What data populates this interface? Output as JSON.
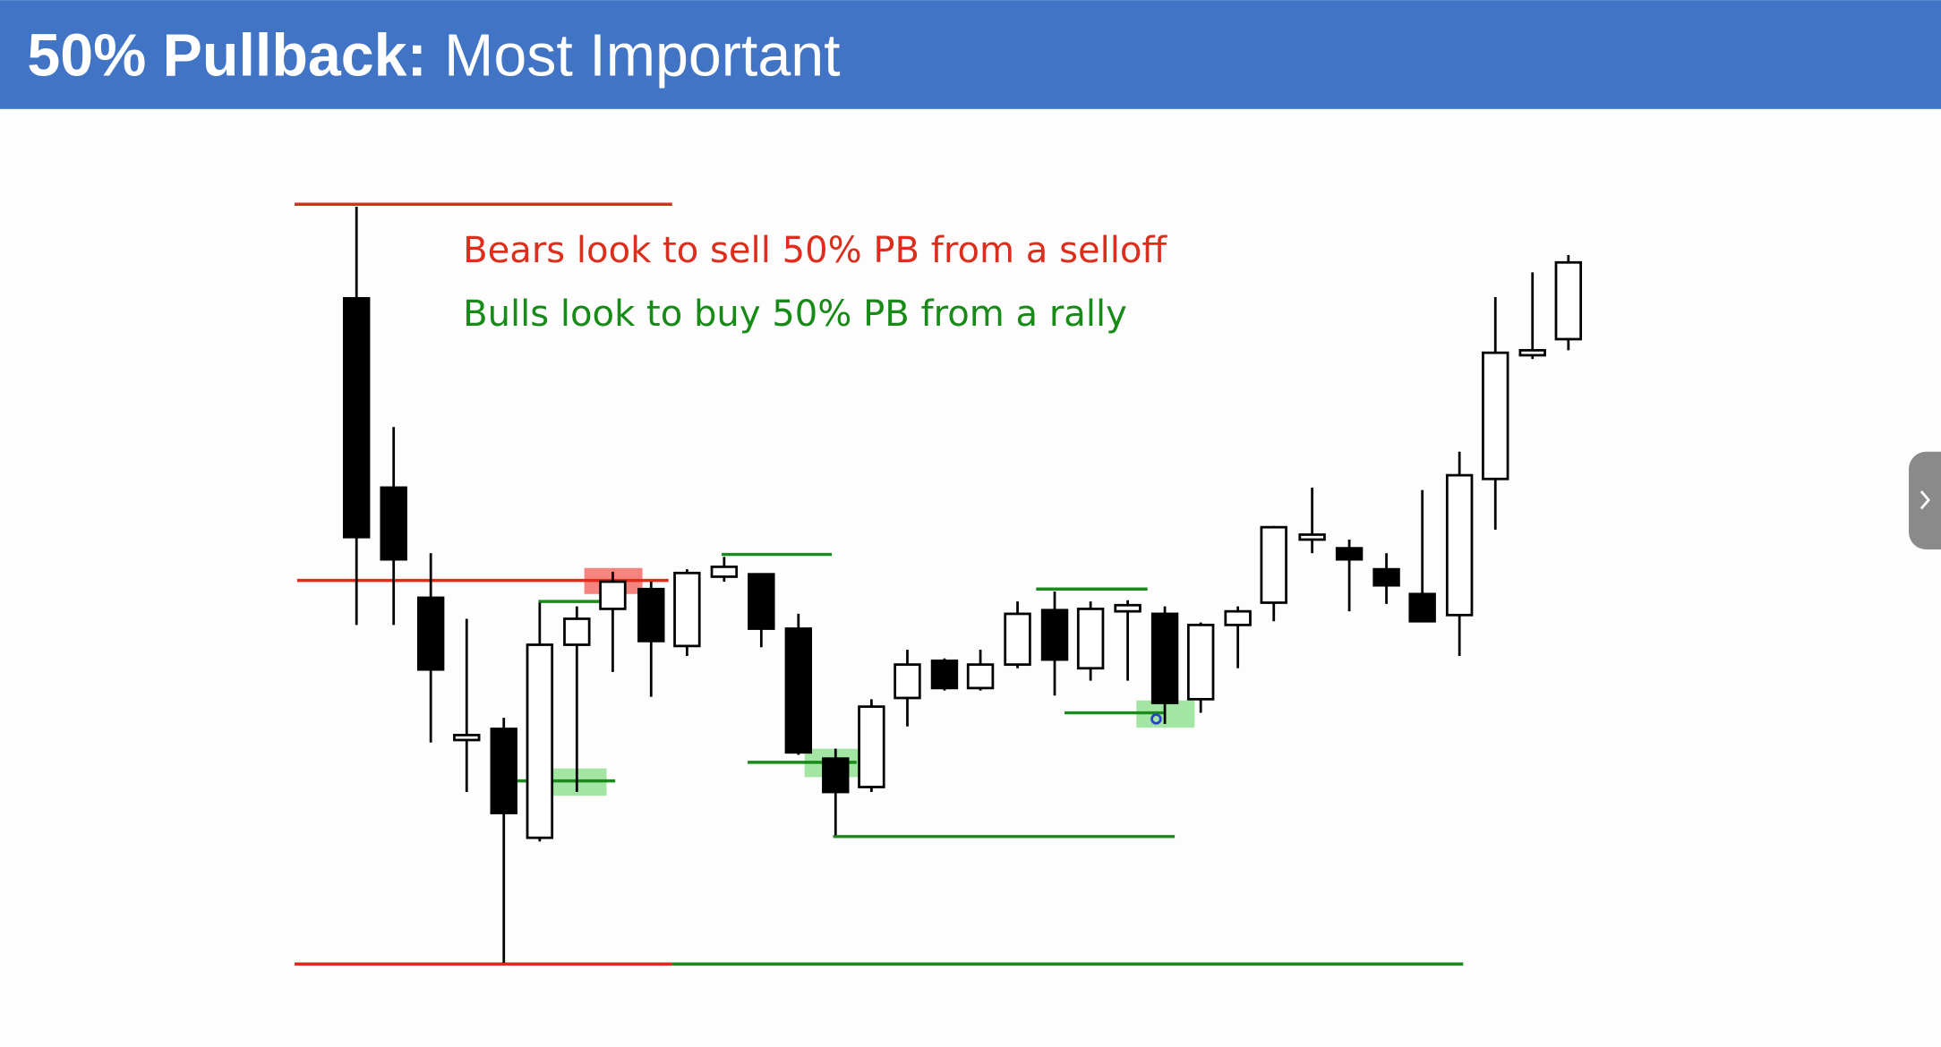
{
  "header": {
    "title_bold": "50% Pullback:",
    "title_rest": "Most Important"
  },
  "annotations": [
    "Bears look to sell 50% PB from a selloff",
    "Bulls look to buy 50% PB from a rally"
  ]
}
